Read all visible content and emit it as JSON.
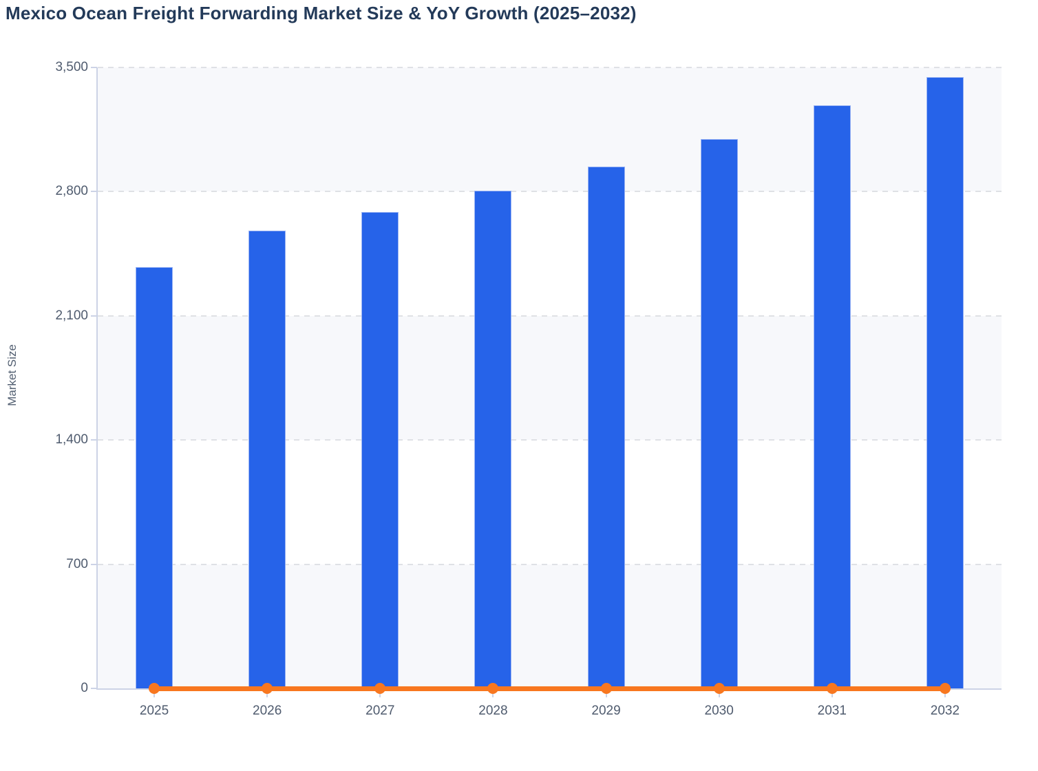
{
  "chart_data": {
    "type": "bar+line combo",
    "title": "Mexico Ocean Freight Forwarding Market Size & YoY Growth (2025–2032)",
    "categories": [
      "2025",
      "2026",
      "2027",
      "2028",
      "2029",
      "2030",
      "2031",
      "2032"
    ],
    "series": [
      {
        "name": "Market Size",
        "type": "bar",
        "color": "#2663e9",
        "values": [
          2375,
          2580,
          2685,
          2805,
          2940,
          3095,
          3285,
          3445
        ]
      },
      {
        "name": "YoY Growth",
        "type": "line",
        "color": "#f8771f",
        "marker": "circle",
        "values": [
          0,
          0,
          0,
          0,
          0,
          0,
          0,
          0
        ],
        "note": "line renders flat along the zero baseline of the left axis; growth percentages are not labeled in the image"
      }
    ],
    "xlabel": "",
    "ylabel": "Market Size",
    "ylim": [
      0,
      3500
    ],
    "yticks": [
      0,
      700,
      1400,
      2100,
      2800,
      3500
    ],
    "ytick_labels": [
      "0",
      "700",
      "1,400",
      "2,100",
      "2,800",
      "3,500"
    ],
    "grid": "dashed horizontal gridlines with alternating shaded bands",
    "legend": "none",
    "colors": {
      "bar": "#2663e9",
      "line": "#f8771f",
      "band_shade": "#f7f8fb",
      "axis": "#ccd3e6",
      "title_text": "#233a59",
      "tick_text": "#4f5b6e"
    }
  }
}
